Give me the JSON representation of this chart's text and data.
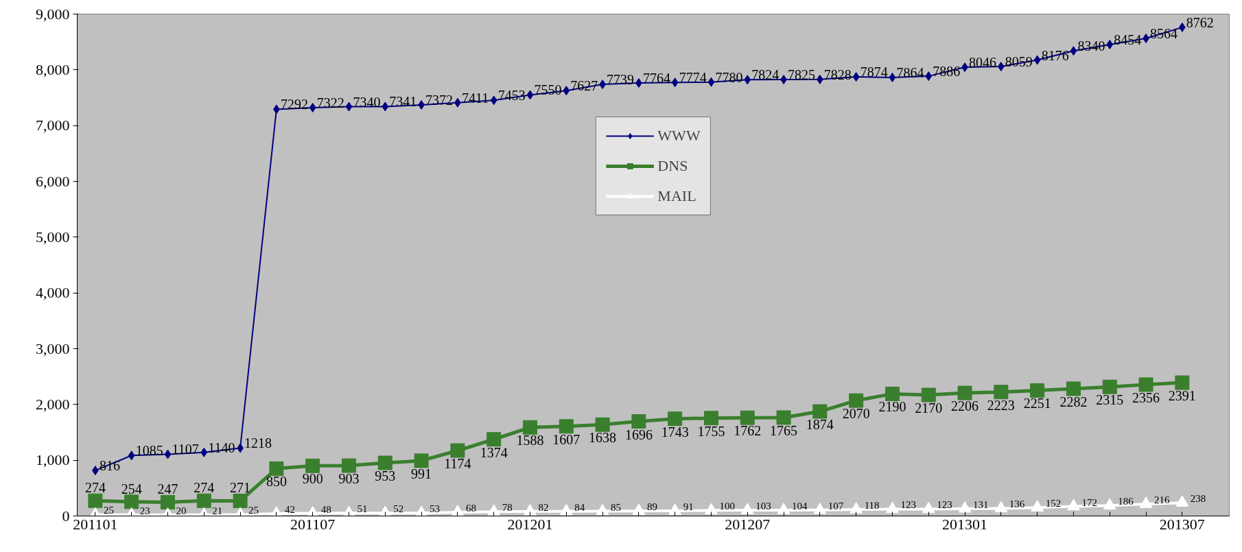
{
  "chart_data": {
    "type": "line",
    "categories": [
      "201101",
      null,
      null,
      null,
      null,
      null,
      "201107",
      null,
      null,
      null,
      null,
      null,
      "201201",
      null,
      null,
      null,
      null,
      null,
      "201207",
      null,
      null,
      null,
      null,
      null,
      "201301",
      null,
      null,
      null,
      null,
      null,
      "201307"
    ],
    "series": [
      {
        "name": "WWW",
        "color": "#000080",
        "marker": "diamond",
        "values": [
          816,
          1085,
          1107,
          1140,
          1218,
          7292,
          7322,
          7340,
          7341,
          7372,
          7411,
          7453,
          7550,
          7627,
          7739,
          7764,
          7774,
          7780,
          7824,
          7825,
          7828,
          7874,
          7864,
          7886,
          8046,
          8059,
          8176,
          8340,
          8454,
          8564,
          8762
        ]
      },
      {
        "name": "DNS",
        "color": "#3a7f2e",
        "marker": "square",
        "values": [
          274,
          254,
          247,
          274,
          271,
          850,
          900,
          903,
          953,
          991,
          1174,
          1374,
          1588,
          1607,
          1638,
          1696,
          1743,
          1755,
          1762,
          1765,
          1874,
          2070,
          2190,
          2170,
          2206,
          2223,
          2251,
          2282,
          2315,
          2356,
          2391
        ]
      },
      {
        "name": "MAIL",
        "color": "#ffffff",
        "marker": "triangle",
        "values": [
          25,
          23,
          20,
          21,
          25,
          42,
          48,
          51,
          52,
          53,
          68,
          78,
          82,
          84,
          85,
          89,
          91,
          100,
          103,
          104,
          107,
          118,
          123,
          123,
          131,
          136,
          152,
          172,
          186,
          216,
          238
        ]
      }
    ],
    "ylim": [
      0,
      9000
    ],
    "yticks": [
      0,
      {
        "value": 1000,
        "label": "1,000"
      },
      {
        "value": 2000,
        "label": "2,000"
      },
      {
        "value": 3000,
        "label": "3,000"
      },
      {
        "value": 4000,
        "label": "4,000"
      },
      {
        "value": 5000,
        "label": "5,000"
      },
      {
        "value": 6000,
        "label": "6,000"
      },
      {
        "value": 7000,
        "label": "7,000"
      },
      {
        "value": 8000,
        "label": "8,000"
      },
      {
        "value": 9000,
        "label": "9,000"
      }
    ],
    "grid": false,
    "legend": "top",
    "data_labels": true
  }
}
